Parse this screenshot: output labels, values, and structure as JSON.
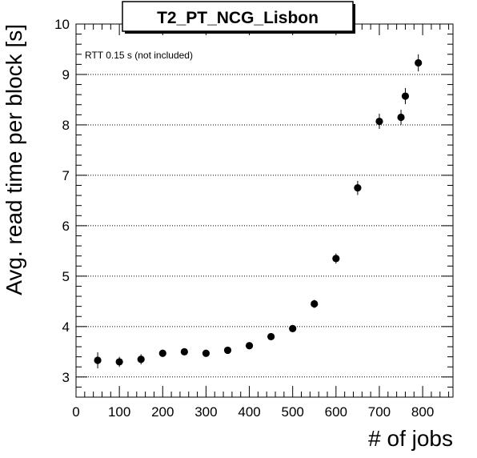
{
  "chart_data": {
    "type": "scatter",
    "title": "T2_PT_NCG_Lisbon",
    "xlabel": "# of jobs",
    "ylabel": "Avg. read time per block [s]",
    "annotation": "RTT 0.15 s (not included)",
    "xlim": [
      0,
      870
    ],
    "ylim": [
      2.6,
      10
    ],
    "x_ticks": [
      0,
      100,
      200,
      300,
      400,
      500,
      600,
      700,
      800
    ],
    "y_ticks": [
      3,
      4,
      5,
      6,
      7,
      8,
      9,
      10
    ],
    "grid": "horizontal dotted at y ticks",
    "marker_color": "#000000",
    "series": [
      {
        "x": [
          50,
          100,
          150,
          200,
          250,
          300,
          350,
          400,
          450,
          500,
          550,
          600,
          650,
          700,
          750,
          760,
          790
        ],
        "y": [
          3.33,
          3.3,
          3.35,
          3.47,
          3.5,
          3.47,
          3.53,
          3.62,
          3.8,
          3.96,
          4.45,
          5.35,
          6.75,
          8.07,
          8.15,
          8.57,
          9.23
        ],
        "err": [
          0.16,
          0.1,
          0.1,
          0.06,
          0.06,
          0.06,
          0.06,
          0.06,
          0.06,
          0.06,
          0.08,
          0.1,
          0.14,
          0.15,
          0.15,
          0.16,
          0.17
        ]
      }
    ]
  }
}
